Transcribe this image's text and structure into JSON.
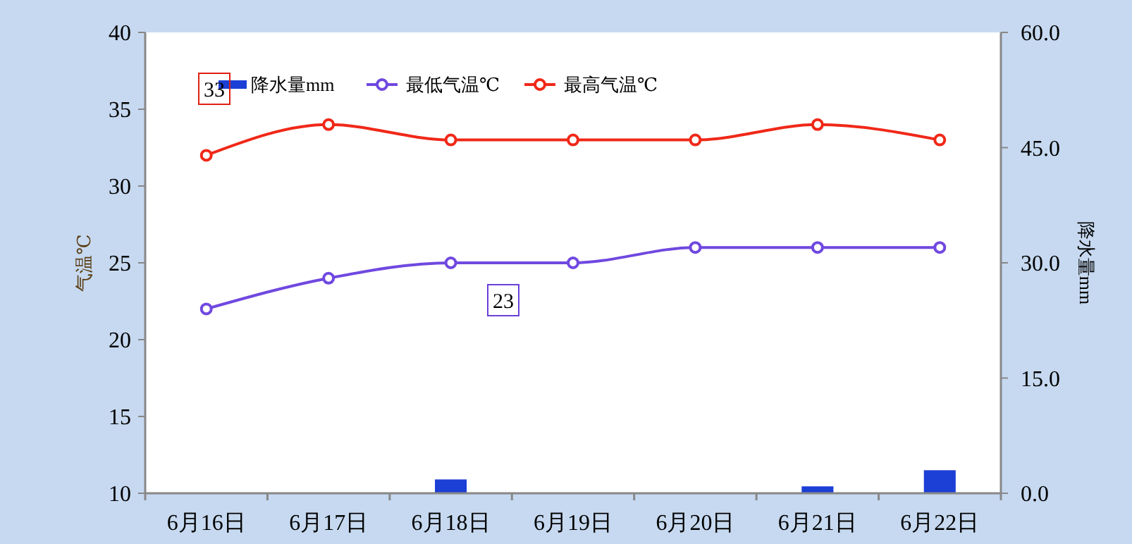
{
  "chart_data": {
    "type": "line",
    "ylabel": "气温℃",
    "y2label": "降水量mm",
    "categories": [
      "6月16日",
      "6月17日",
      "6月18日",
      "6月19日",
      "6月20日",
      "6月21日",
      "6月22日"
    ],
    "series": [
      {
        "name": "降水量mm",
        "type": "bar",
        "axis": "y2",
        "color": "#1c3fd6",
        "values": [
          0,
          0,
          1.8,
          0,
          0,
          0.9,
          3.0
        ]
      },
      {
        "name": "最低气温℃",
        "color": "#7048e0",
        "values": [
          22,
          24,
          25,
          25,
          26,
          26,
          26
        ]
      },
      {
        "name": "最高气温℃",
        "color": "#f02818",
        "values": [
          32,
          34,
          33,
          33,
          33,
          34,
          33
        ]
      }
    ],
    "ylim": [
      10,
      40
    ],
    "yticks": [
      10,
      15,
      20,
      25,
      30,
      35,
      40
    ],
    "y2lim": [
      0,
      60
    ],
    "y2ticks": [
      {
        "value": 0,
        "label": "0.0"
      },
      {
        "value": 15,
        "label": "15.0"
      },
      {
        "value": 30,
        "label": "30.0"
      },
      {
        "value": 45,
        "label": "45.0"
      },
      {
        "value": 60,
        "label": "60.0"
      }
    ],
    "annotations": [
      "33",
      "23"
    ],
    "marker": "circle",
    "grid": false,
    "legend": "top left"
  }
}
